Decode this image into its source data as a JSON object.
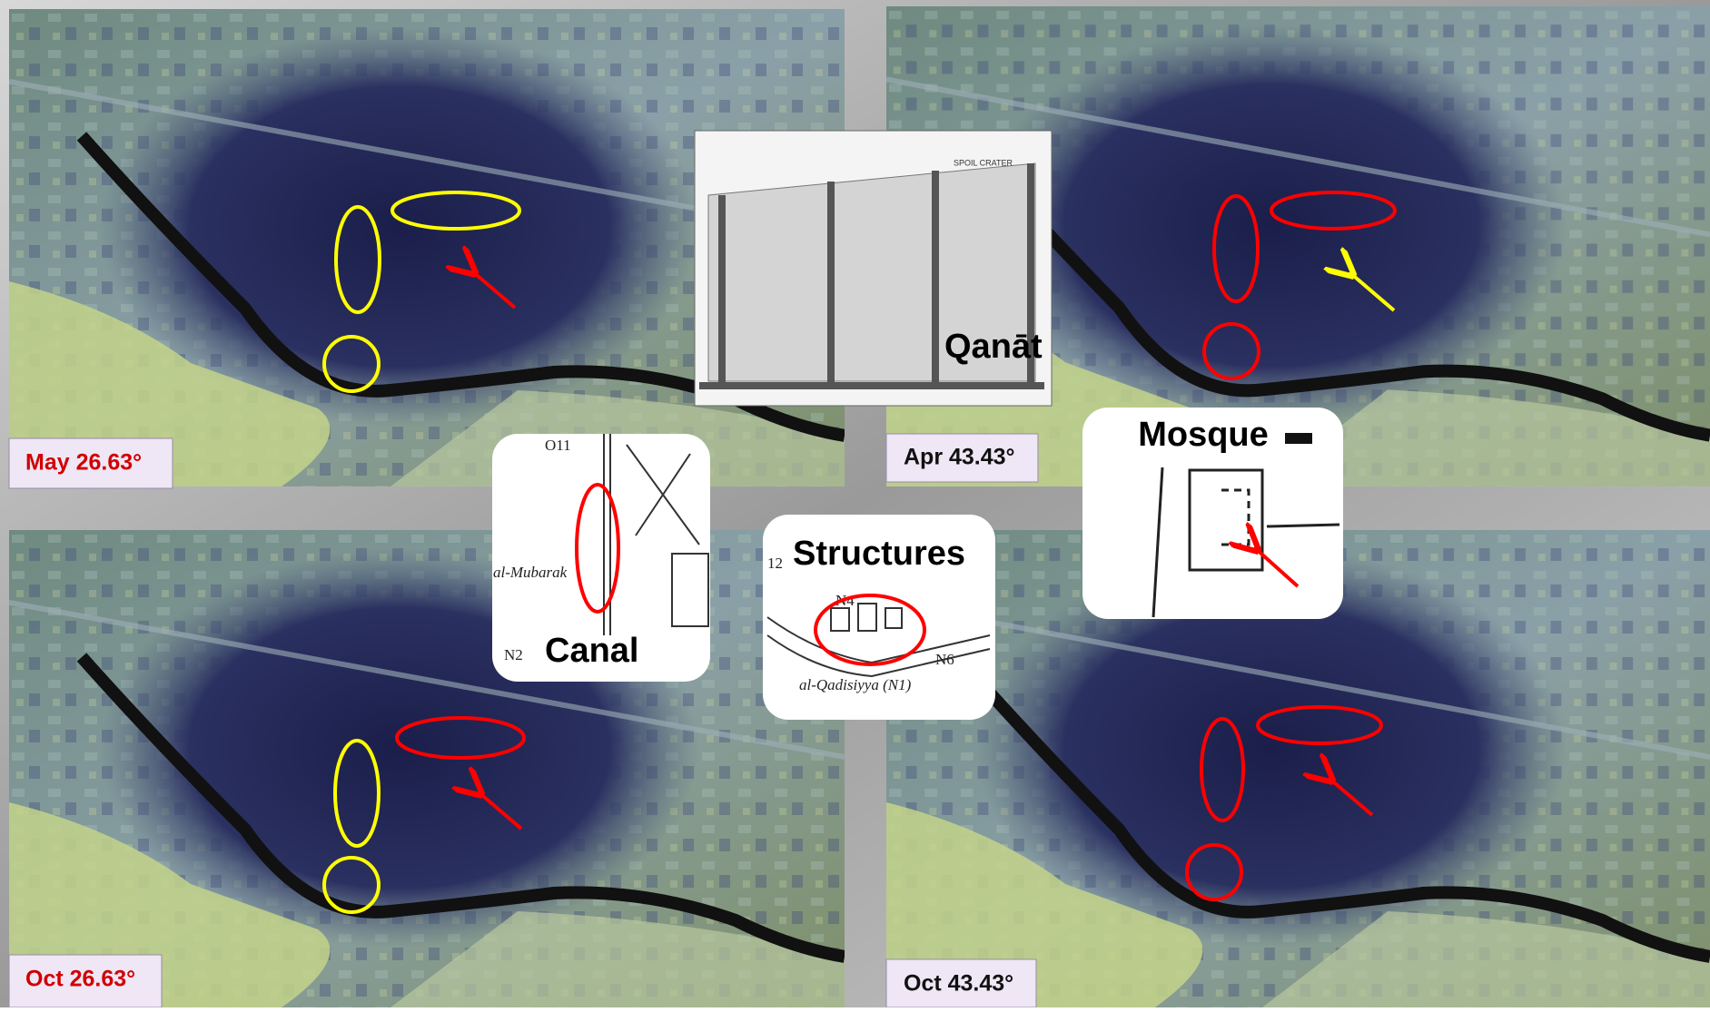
{
  "panels": [
    {
      "label": "May 26.63°"
    },
    {
      "label": "Apr 43.43°"
    },
    {
      "label": "Oct 26.63°"
    },
    {
      "label": "Oct 43.43°"
    }
  ],
  "insets": {
    "qanat": {
      "label": "Qanāt",
      "note": "SPOIL CRATER"
    },
    "canal": {
      "label": "Canal",
      "map_text": [
        "O11",
        "al-Mubarak",
        "N2"
      ]
    },
    "structures": {
      "label": "Structures",
      "map_text": [
        "N4",
        "N6",
        "al-Qadisiyya (N1)",
        "12"
      ]
    },
    "mosque": {
      "label": "Mosque"
    }
  }
}
